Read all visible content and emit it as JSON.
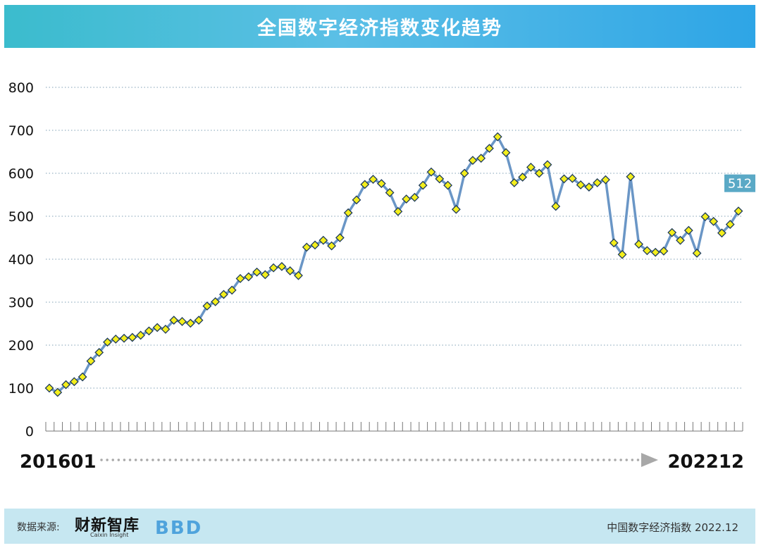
{
  "title": "全国数字经济指数变化趋势",
  "footer": {
    "source_label": "数据来源:",
    "logo_text": "财新智库",
    "logo_subtext": "Caixin Insight",
    "bbd_logo": "BBD",
    "right_text": "中国数字经济指数 2022.12"
  },
  "chart_data": {
    "type": "line",
    "title": "全国数字经济指数变化趋势",
    "xlabel": "",
    "ylabel": "",
    "x_start_label": "201601",
    "x_end_label": "202212",
    "ylim": [
      0,
      800
    ],
    "yticks": [
      0,
      100,
      200,
      300,
      400,
      500,
      600,
      700,
      800
    ],
    "grid": "dotted horizontal",
    "last_value_label": "512",
    "colors": {
      "line": "#6a96c6",
      "marker_fill": "#f3ee1c",
      "marker_stroke": "#1d3a5c",
      "grid": "#7f9fb5",
      "label_bg": "#5aa9c6"
    },
    "series": [
      {
        "values": [
          100,
          90,
          108,
          115,
          126,
          163,
          183,
          207,
          214,
          216,
          218,
          223,
          233,
          241,
          237,
          258,
          255,
          251,
          258,
          291,
          301,
          318,
          328,
          355,
          359,
          370,
          364,
          380,
          383,
          373,
          362,
          428,
          433,
          444,
          431,
          450,
          508,
          538,
          574,
          586,
          576,
          555,
          511,
          540,
          544,
          572,
          603,
          587,
          572,
          516,
          600,
          630,
          635,
          658,
          685,
          648,
          578,
          591,
          614,
          600,
          620,
          523,
          587,
          588,
          573,
          568,
          578,
          585,
          438,
          411,
          592,
          435,
          420,
          416,
          419,
          462,
          444,
          467,
          414,
          499,
          488,
          461,
          481,
          512
        ]
      }
    ]
  }
}
